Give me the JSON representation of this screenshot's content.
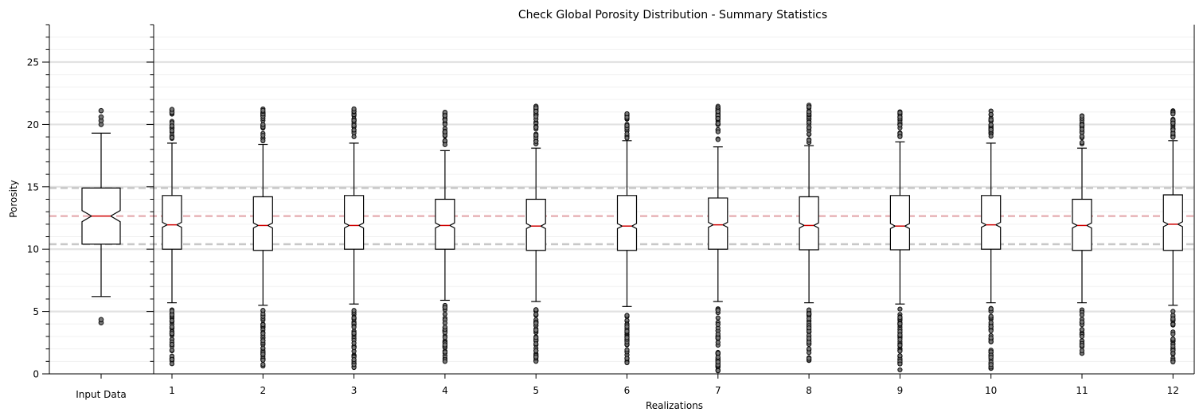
{
  "chart_data": {
    "type": "box",
    "title": "Check Global Porosity Distribution - Summary Statistics",
    "xlabel": "Realizations",
    "ylabel": "Porosity",
    "ylim": [
      0,
      28
    ],
    "yticks": [
      0,
      5,
      10,
      15,
      20,
      25
    ],
    "grid": "horizontal",
    "reference_lines": {
      "q1": 10.4,
      "median": 12.65,
      "q3": 14.9,
      "colors": {
        "quartiles": "#c8c8c8",
        "median": "#e8b4b8"
      }
    },
    "input_data": {
      "label": "Input Data",
      "q1": 10.4,
      "median": 12.65,
      "q3": 14.9,
      "notch_low": 12.2,
      "notch_high": 13.1,
      "whisker_low": 6.2,
      "whisker_high": 19.3,
      "outliers_low": [
        4.1,
        4.35
      ],
      "outliers_high": [
        20.0,
        20.3,
        20.6,
        21.1
      ]
    },
    "realizations": [
      {
        "label": "1",
        "q1": 10.0,
        "median": 11.95,
        "q3": 14.3,
        "whisker_low": 5.7,
        "whisker_high": 18.5,
        "outlier_low_min": 0.8,
        "outlier_high_max": 21.3
      },
      {
        "label": "2",
        "q1": 9.9,
        "median": 11.9,
        "q3": 14.2,
        "whisker_low": 5.5,
        "whisker_high": 18.4,
        "outlier_low_min": 0.5,
        "outlier_high_max": 21.3
      },
      {
        "label": "3",
        "q1": 10.0,
        "median": 11.9,
        "q3": 14.3,
        "whisker_low": 5.6,
        "whisker_high": 18.5,
        "outlier_low_min": 0.4,
        "outlier_high_max": 21.3
      },
      {
        "label": "4",
        "q1": 10.0,
        "median": 11.9,
        "q3": 14.0,
        "whisker_low": 5.9,
        "whisker_high": 17.9,
        "outlier_low_min": 0.9,
        "outlier_high_max": 21.0
      },
      {
        "label": "5",
        "q1": 9.9,
        "median": 11.85,
        "q3": 14.0,
        "whisker_low": 5.8,
        "whisker_high": 18.1,
        "outlier_low_min": 1.0,
        "outlier_high_max": 21.5
      },
      {
        "label": "6",
        "q1": 9.9,
        "median": 11.85,
        "q3": 14.3,
        "whisker_low": 5.4,
        "whisker_high": 18.7,
        "outlier_low_min": 0.8,
        "outlier_high_max": 21.0
      },
      {
        "label": "7",
        "q1": 10.0,
        "median": 11.95,
        "q3": 14.1,
        "whisker_low": 5.8,
        "whisker_high": 18.2,
        "outlier_low_min": 0.2,
        "outlier_high_max": 21.6
      },
      {
        "label": "8",
        "q1": 9.95,
        "median": 11.9,
        "q3": 14.2,
        "whisker_low": 5.7,
        "whisker_high": 18.3,
        "outlier_low_min": 0.8,
        "outlier_high_max": 21.6
      },
      {
        "label": "9",
        "q1": 9.95,
        "median": 11.85,
        "q3": 14.3,
        "whisker_low": 5.6,
        "whisker_high": 18.6,
        "outlier_low_min": 0.2,
        "outlier_high_max": 21.1
      },
      {
        "label": "10",
        "q1": 10.0,
        "median": 11.95,
        "q3": 14.3,
        "whisker_low": 5.7,
        "whisker_high": 18.5,
        "outlier_low_min": 0.4,
        "outlier_high_max": 21.1
      },
      {
        "label": "11",
        "q1": 9.9,
        "median": 11.9,
        "q3": 14.0,
        "whisker_low": 5.7,
        "whisker_high": 18.1,
        "outlier_low_min": 1.4,
        "outlier_high_max": 20.8
      },
      {
        "label": "12",
        "q1": 9.9,
        "median": 12.0,
        "q3": 14.35,
        "whisker_low": 5.5,
        "whisker_high": 18.7,
        "outlier_low_min": 0.9,
        "outlier_high_max": 21.2
      }
    ]
  }
}
